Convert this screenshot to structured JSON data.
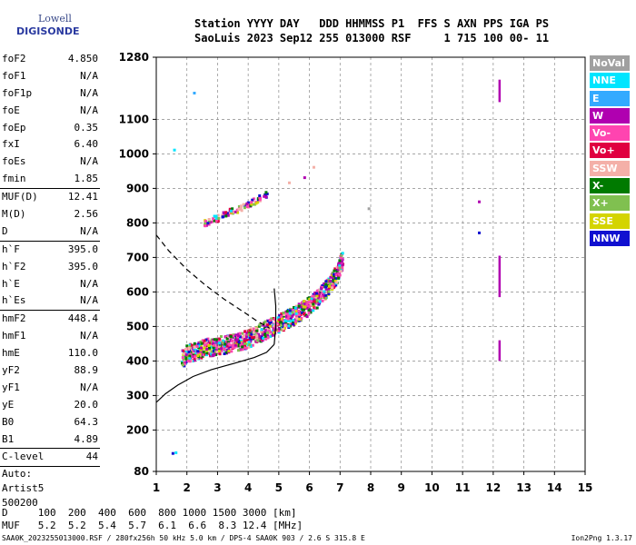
{
  "logo": {
    "line1": "Lowell",
    "line2": "DIGISONDE"
  },
  "header": {
    "line1": "Station YYYY DAY   DDD HHMMSS P1  FFS S AXN PPS IGA PS",
    "line2": "SaoLuis 2023 Sep12 255 013000 RSF     1 715 100 00- 11"
  },
  "params": {
    "group1": [
      {
        "name": "foF2",
        "value": "4.850"
      },
      {
        "name": "foF1",
        "value": "N/A"
      },
      {
        "name": "foF1p",
        "value": "N/A"
      },
      {
        "name": "foE",
        "value": "N/A"
      },
      {
        "name": "foEp",
        "value": "0.35"
      },
      {
        "name": "fxI",
        "value": "6.40"
      },
      {
        "name": "foEs",
        "value": "N/A"
      },
      {
        "name": "fmin",
        "value": "1.85"
      }
    ],
    "group2": [
      {
        "name": "MUF(D)",
        "value": "12.41"
      },
      {
        "name": "M(D)",
        "value": "2.56"
      },
      {
        "name": "D",
        "value": "N/A"
      }
    ],
    "group3": [
      {
        "name": "h`F",
        "value": "395.0"
      },
      {
        "name": "h`F2",
        "value": "395.0"
      },
      {
        "name": "h`E",
        "value": "N/A"
      },
      {
        "name": "h`Es",
        "value": "N/A"
      }
    ],
    "group4": [
      {
        "name": "hmF2",
        "value": "448.4"
      },
      {
        "name": "hmF1",
        "value": "N/A"
      },
      {
        "name": "hmE",
        "value": "110.0"
      },
      {
        "name": "yF2",
        "value": "88.9"
      },
      {
        "name": "yF1",
        "value": "N/A"
      },
      {
        "name": "yE",
        "value": "20.0"
      },
      {
        "name": "B0",
        "value": "64.3"
      },
      {
        "name": "B1",
        "value": "4.89"
      }
    ],
    "group5": [
      {
        "name": "C-level",
        "value": "44"
      }
    ],
    "auto": [
      "Auto:",
      "Artist5",
      "500200"
    ]
  },
  "legend": [
    {
      "label": "NoVal",
      "color": "#a0a0a0"
    },
    {
      "label": "NNE",
      "color": "#00e5ff"
    },
    {
      "label": "E",
      "color": "#33aaff"
    },
    {
      "label": "W",
      "color": "#b000b0"
    },
    {
      "label": "Vo-",
      "color": "#ff44b0"
    },
    {
      "label": "Vo+",
      "color": "#e00040"
    },
    {
      "label": "SSW",
      "color": "#f4b0a8"
    },
    {
      "label": "X-",
      "color": "#007a00"
    },
    {
      "label": "X+",
      "color": "#80c050"
    },
    {
      "label": "SSE",
      "color": "#d4d400"
    },
    {
      "label": "NNW",
      "color": "#1010d0"
    }
  ],
  "muf_table": {
    "d_line": "D     100  200  400  600  800 1000 1500 3000 [km]",
    "muf_line": "MUF   5.2  5.2  5.4  5.7  6.1  6.6  8.3 12.4 [MHz]"
  },
  "footer": {
    "text": "SAA0K_2023255013000.RSF / 280fx256h 50 kHz 5.0 km / DPS-4 SAA0K 903 / 2.6 S 315.8 E",
    "version": "Ion2Png 1.3.17"
  },
  "chart_data": {
    "type": "scatter",
    "xlim": [
      1,
      15
    ],
    "ylim": [
      80,
      1280
    ],
    "xticks": [
      1,
      2,
      3,
      4,
      5,
      6,
      7,
      8,
      9,
      10,
      11,
      12,
      13,
      14,
      15
    ],
    "yticks": [
      80,
      200,
      300,
      400,
      500,
      600,
      700,
      800,
      900,
      1000,
      1100,
      1280
    ],
    "grid": "dashed",
    "profile_line": [
      [
        1.0,
        280
      ],
      [
        1.3,
        305
      ],
      [
        1.7,
        330
      ],
      [
        2.2,
        355
      ],
      [
        2.8,
        375
      ],
      [
        3.5,
        392
      ],
      [
        4.2,
        410
      ],
      [
        4.6,
        425
      ],
      [
        4.85,
        448
      ]
    ],
    "profile_upper": [
      [
        4.85,
        448
      ],
      [
        4.9,
        500
      ],
      [
        4.9,
        560
      ],
      [
        4.85,
        610
      ]
    ],
    "profile_dashed": [
      [
        1.0,
        765
      ],
      [
        1.4,
        720
      ],
      [
        2.0,
        665
      ],
      [
        2.6,
        620
      ],
      [
        3.2,
        580
      ],
      [
        3.8,
        545
      ],
      [
        4.3,
        515
      ],
      [
        4.7,
        495
      ]
    ],
    "traces": [
      {
        "name": "F2 trace",
        "points": [
          [
            1.8,
            410
          ],
          [
            2.0,
            425
          ],
          [
            2.2,
            430
          ],
          [
            2.5,
            440
          ],
          [
            2.8,
            445
          ],
          [
            3.0,
            448
          ],
          [
            3.3,
            452
          ],
          [
            3.6,
            458
          ],
          [
            3.9,
            466
          ],
          [
            4.2,
            478
          ],
          [
            4.5,
            492
          ],
          [
            4.8,
            505
          ],
          [
            5.1,
            518
          ],
          [
            5.4,
            532
          ],
          [
            5.7,
            548
          ],
          [
            6.0,
            565
          ],
          [
            6.3,
            590
          ],
          [
            6.6,
            620
          ],
          [
            6.9,
            660
          ],
          [
            7.05,
            700
          ]
        ],
        "spread": 26
      },
      {
        "name": "F2 multihop",
        "points": [
          [
            2.5,
            800
          ],
          [
            2.8,
            812
          ],
          [
            3.1,
            823
          ],
          [
            3.4,
            835
          ],
          [
            3.7,
            845
          ],
          [
            4.0,
            860
          ],
          [
            4.3,
            872
          ],
          [
            4.6,
            885
          ]
        ],
        "spread": 10
      }
    ],
    "isolated": [
      {
        "x": 1.55,
        "y": 1015,
        "color": "#00e5ff"
      },
      {
        "x": 2.2,
        "y": 1180,
        "color": "#33aaff"
      },
      {
        "x": 5.8,
        "y": 935,
        "color": "#b000b0"
      },
      {
        "x": 6.1,
        "y": 965,
        "color": "#f4b0a8"
      },
      {
        "x": 5.3,
        "y": 920,
        "color": "#f4b0a8"
      },
      {
        "x": 11.5,
        "y": 865,
        "color": "#b000b0"
      },
      {
        "x": 11.5,
        "y": 775,
        "color": "#1010d0"
      },
      {
        "x": 7.9,
        "y": 845,
        "color": "#a0a0a0"
      },
      {
        "x": 1.5,
        "y": 136,
        "color": "#1010d0"
      },
      {
        "x": 1.6,
        "y": 138,
        "color": "#00e5ff"
      }
    ],
    "vertical_bars": [
      {
        "x": 12.2,
        "y0": 1150,
        "y1": 1215,
        "color": "#b000b0"
      },
      {
        "x": 12.2,
        "y0": 585,
        "y1": 705,
        "color": "#b000b0"
      },
      {
        "x": 12.2,
        "y0": 400,
        "y1": 460,
        "color": "#b000b0"
      }
    ]
  }
}
